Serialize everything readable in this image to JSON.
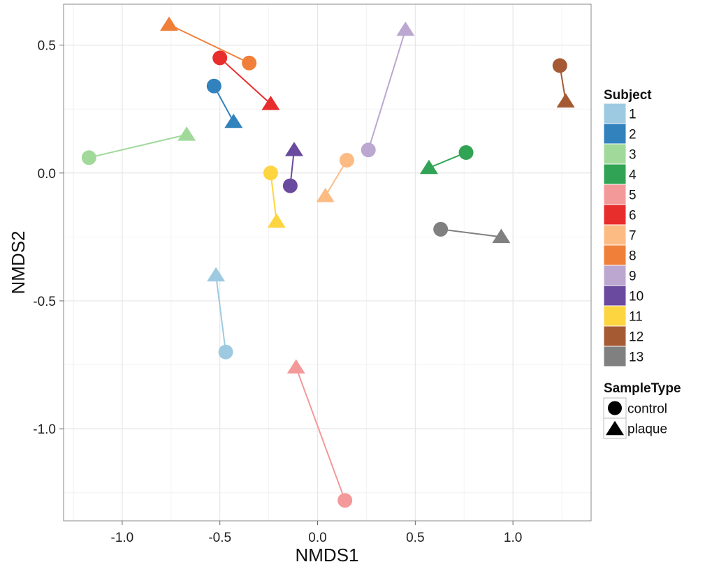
{
  "chart_data": {
    "type": "scatter",
    "xlabel": "NMDS1",
    "ylabel": "NMDS2",
    "xlim": [
      -1.3,
      1.4
    ],
    "ylim": [
      -1.36,
      0.66
    ],
    "x_ticks": [
      -1.0,
      -0.5,
      0.0,
      0.5,
      1.0
    ],
    "x_tick_labels": [
      "-1.0",
      "-0.5",
      "0.0",
      "0.5",
      "1.0"
    ],
    "y_ticks": [
      -1.0,
      -0.5,
      0.0,
      0.5
    ],
    "y_tick_labels": [
      "-1.0",
      "-0.5",
      "0.0",
      "0.5"
    ],
    "grid": true,
    "background": "#ffffff",
    "legend_subject": {
      "title": "Subject",
      "placement": "right",
      "items": [
        {
          "label": "1",
          "color": "#9ECAE1"
        },
        {
          "label": "2",
          "color": "#3182BD"
        },
        {
          "label": "3",
          "color": "#A1D99B"
        },
        {
          "label": "4",
          "color": "#31A354"
        },
        {
          "label": "5",
          "color": "#F4999A"
        },
        {
          "label": "6",
          "color": "#E82D2D"
        },
        {
          "label": "7",
          "color": "#FDBB84"
        },
        {
          "label": "8",
          "color": "#F07F3A"
        },
        {
          "label": "9",
          "color": "#BCA7D1"
        },
        {
          "label": "10",
          "color": "#6A4A9E"
        },
        {
          "label": "11",
          "color": "#FDD540"
        },
        {
          "label": "12",
          "color": "#A65A34"
        },
        {
          "label": "13",
          "color": "#808080"
        }
      ]
    },
    "legend_sampletype": {
      "title": "SampleType",
      "placement": "right",
      "items": [
        {
          "label": "control",
          "shape": "circle"
        },
        {
          "label": "plaque",
          "shape": "triangle"
        }
      ]
    },
    "subjects": [
      {
        "subject": "1",
        "control": [
          -0.47,
          -0.7
        ],
        "plaque": [
          -0.52,
          -0.4
        ]
      },
      {
        "subject": "2",
        "control": [
          -0.53,
          0.34
        ],
        "plaque": [
          -0.43,
          0.2
        ]
      },
      {
        "subject": "3",
        "control": [
          -1.17,
          0.06
        ],
        "plaque": [
          -0.67,
          0.15
        ]
      },
      {
        "subject": "4",
        "control": [
          0.76,
          0.08
        ],
        "plaque": [
          0.57,
          0.02
        ]
      },
      {
        "subject": "5",
        "control": [
          0.14,
          -1.28
        ],
        "plaque": [
          -0.11,
          -0.76
        ]
      },
      {
        "subject": "6",
        "control": [
          -0.5,
          0.45
        ],
        "plaque": [
          -0.24,
          0.27
        ]
      },
      {
        "subject": "7",
        "control": [
          0.15,
          0.05
        ],
        "plaque": [
          0.04,
          -0.09
        ]
      },
      {
        "subject": "8",
        "control": [
          -0.35,
          0.43
        ],
        "plaque": [
          -0.76,
          0.58
        ]
      },
      {
        "subject": "9",
        "control": [
          0.26,
          0.09
        ],
        "plaque": [
          0.45,
          0.56
        ]
      },
      {
        "subject": "10",
        "control": [
          -0.14,
          -0.05
        ],
        "plaque": [
          -0.12,
          0.09
        ]
      },
      {
        "subject": "11",
        "control": [
          -0.24,
          0.0
        ],
        "plaque": [
          -0.21,
          -0.19
        ]
      },
      {
        "subject": "12",
        "control": [
          1.24,
          0.42
        ],
        "plaque": [
          1.27,
          0.28
        ]
      },
      {
        "subject": "13",
        "control": [
          0.63,
          -0.22
        ],
        "plaque": [
          0.94,
          -0.25
        ]
      }
    ]
  }
}
